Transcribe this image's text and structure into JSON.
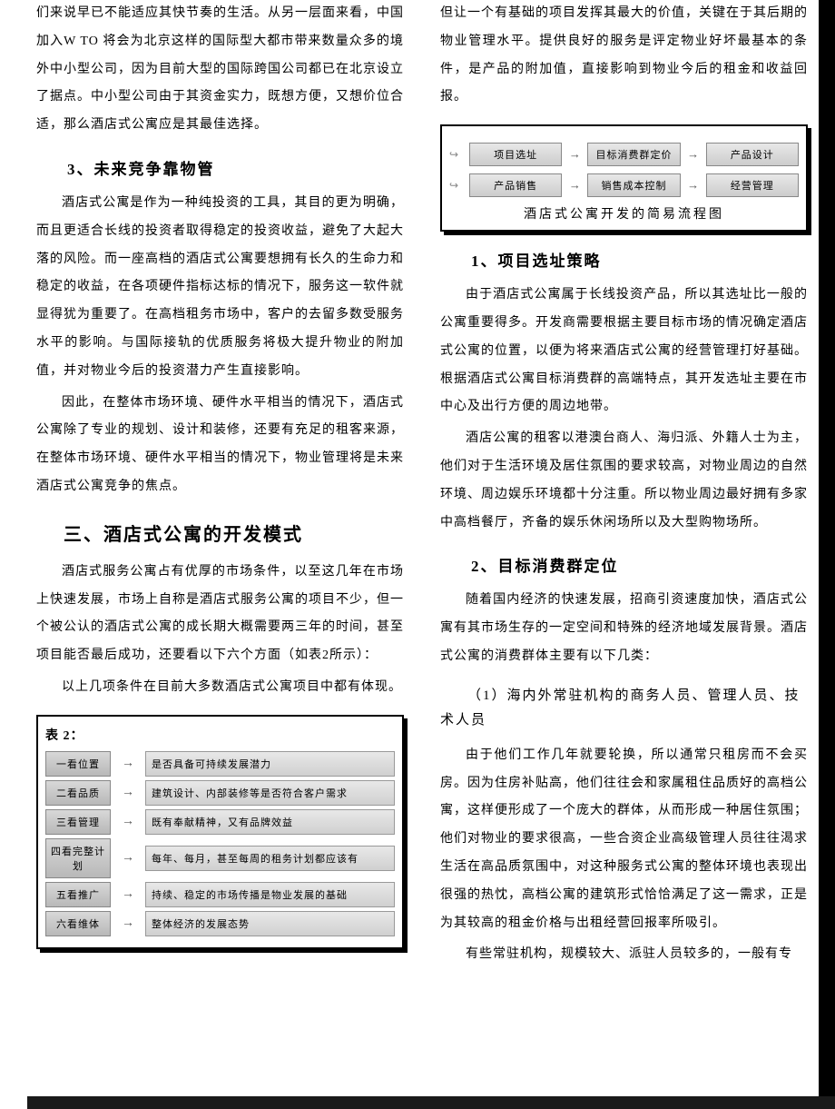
{
  "colors": {
    "text": "#000000",
    "background": "#ffffff",
    "border": "#000000",
    "shadow": "#000000",
    "node_bg_top": "#e8e8e8",
    "node_bg_bottom": "#cccccc",
    "arrow": "#555555"
  },
  "left": {
    "p1": "们来说早已不能适应其快节奏的生活。从另一层面来看，中国加入W TO 将会为北京这样的国际型大都市带来数量众多的境外中小型公司，因为目前大型的国际跨国公司都已在北京设立了据点。中小型公司由于其资金实力，既想方便，又想价位合适，那么酒店式公寓应是其最佳选择。",
    "h3_1": "3、未来竞争靠物管",
    "p2": "酒店式公寓是作为一种纯投资的工具，其目的更为明确，而且更适合长线的投资者取得稳定的投资收益，避免了大起大落的风险。而一座高档的酒店式公寓要想拥有长久的生命力和稳定的收益，在各项硬件指标达标的情况下，服务这一软件就显得犹为重要了。在高档租务市场中，客户的去留多数受服务水平的影响。与国际接轨的优质服务将极大提升物业的附加值，并对物业今后的投资潜力产生直接影响。",
    "p3": "因此，在整体市场环境、硬件水平相当的情况下，酒店式公寓除了专业的规划、设计和装修，还要有充足的租客来源，在整体市场环境、硬件水平相当的情况下，物业管理将是未来酒店式公寓竞争的焦点。",
    "h2_1": "三、酒店式公寓的开发模式",
    "p4": "酒店式服务公寓占有优厚的市场条件，以至这几年在市场上快速发展，市场上自称是酒店式服务公寓的项目不少，但一个被公认的酒店式公寓的成长期大概需要两三年的时间，甚至项目能否最后成功，还要看以下六个方面（如表2所示）：",
    "p5": "以上几项条件在目前大多数酒店式公寓项目中都有体现。",
    "table2": {
      "title": "表 2：",
      "rows": [
        {
          "label": "一看位置",
          "desc": "是否具备可持续发展潜力"
        },
        {
          "label": "二看品质",
          "desc": "建筑设计、内部装修等是否符合客户需求"
        },
        {
          "label": "三看管理",
          "desc": "既有奉献精神，又有品牌效益"
        },
        {
          "label": "四看完整计划",
          "desc": "每年、每月，甚至每周的租务计划都应该有"
        },
        {
          "label": "五看推广",
          "desc": "持续、稳定的市场传播是物业发展的基础"
        },
        {
          "label": "六看维体",
          "desc": "整体经济的发展态势"
        }
      ]
    }
  },
  "right": {
    "p1": "但让一个有基础的项目发挥其最大的价值，关键在于其后期的物业管理水平。提供良好的服务是评定物业好坏最基本的条件，是产品的附加值，直接影响到物业今后的租金和收益回报。",
    "flowchart": {
      "caption": "酒店式公寓开发的简易流程图",
      "row1": [
        "项目选址",
        "目标消费群定价",
        "产品设计"
      ],
      "row2": [
        "产品销售",
        "销售成本控制",
        "经营管理"
      ]
    },
    "h3_1": "1、项目选址策略",
    "p2": "由于酒店式公寓属于长线投资产品，所以其选址比一般的公寓重要得多。开发商需要根据主要目标市场的情况确定酒店式公寓的位置，以便为将来酒店式公寓的经营管理打好基础。根据酒店式公寓目标消费群的高端特点，其开发选址主要在市中心及出行方便的周边地带。",
    "p3": "酒店公寓的租客以港澳台商人、海归派、外籍人士为主，他们对于生活环境及居住氛围的要求较高，对物业周边的自然环境、周边娱乐环境都十分注重。所以物业周边最好拥有多家中高档餐厅，齐备的娱乐休闲场所以及大型购物场所。",
    "h3_2": "2、目标消费群定位",
    "p4": "随着国内经济的快速发展，招商引资速度加快，酒店式公寓有其市场生存的一定空间和特殊的经济地域发展背景。酒店式公寓的消费群体主要有以下几类：",
    "h4_1": "（1）海内外常驻机构的商务人员、管理人员、技术人员",
    "p5": "由于他们工作几年就要轮换，所以通常只租房而不会买房。因为住房补贴高，他们往往会和家属租住品质好的高档公寓，这样便形成了一个庞大的群体，从而形成一种居住氛围；他们对物业的要求很高，一些合资企业高级管理人员往往渴求生活在高品质氛围中，对这种服务式公寓的整体环境也表现出很强的热忱，高档公寓的建筑形式恰恰满足了这一需求，正是为其较高的租金价格与出租经营回报率所吸引。",
    "p6": "有些常驻机构，规模较大、派驻人员较多的，一般有专"
  }
}
